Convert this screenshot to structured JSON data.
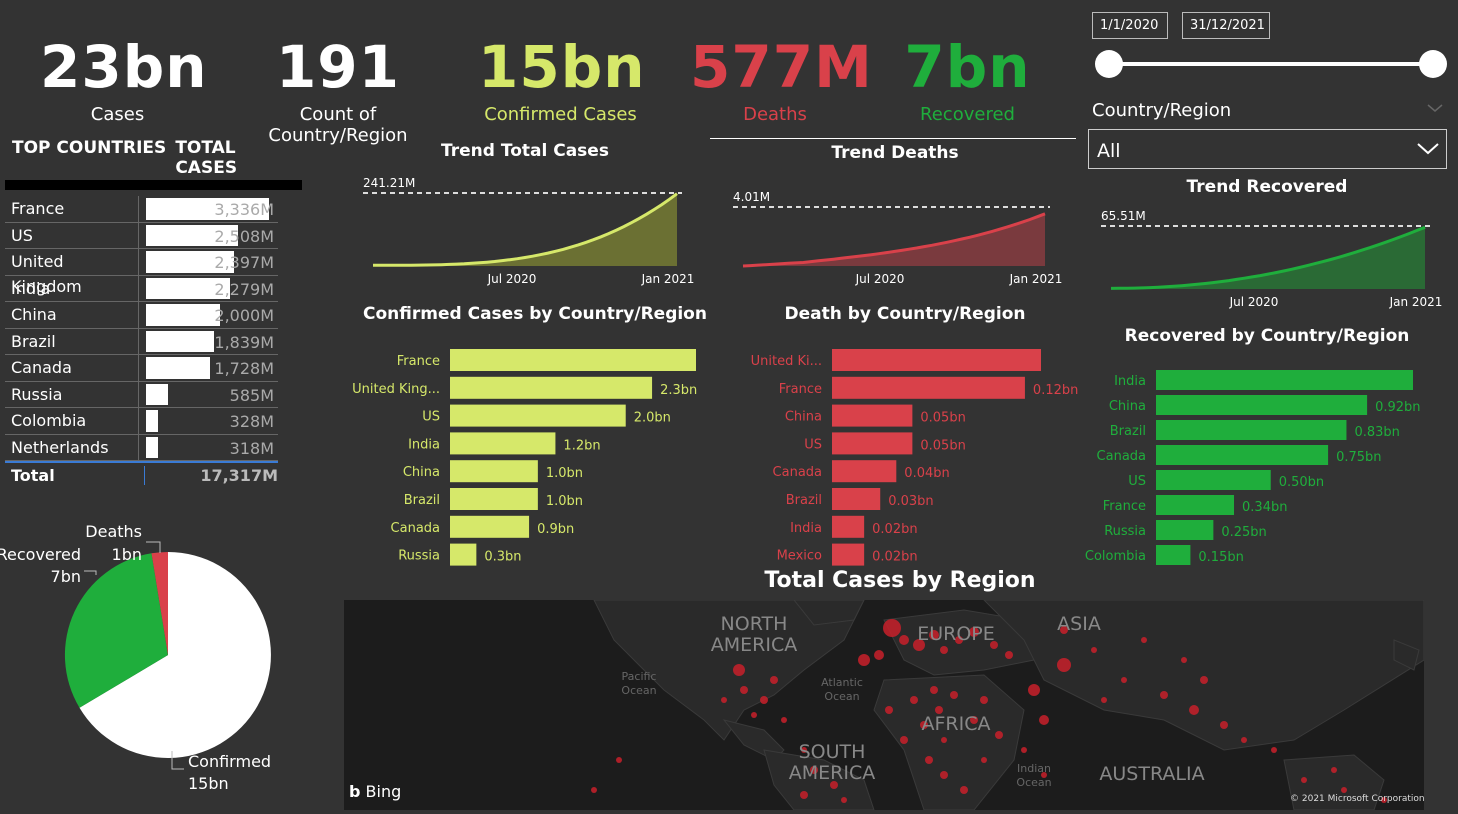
{
  "kpis": [
    {
      "value": "23bn",
      "label": "Cases",
      "color": "#ffffff"
    },
    {
      "value": "191",
      "label": "Count of Country/Region",
      "color": "#ffffff"
    },
    {
      "value": "15bn",
      "label": "Confirmed Cases",
      "color": "#d6e86a"
    },
    {
      "value": "577M",
      "label": "Deaths",
      "color": "#d9414a"
    },
    {
      "value": "7bn",
      "label": "Recovered",
      "color": "#1fae3c"
    }
  ],
  "date_range": {
    "start": "1/1/2020",
    "end": "31/12/2021",
    "fill_start": 0.0,
    "fill_end": 1.0
  },
  "slicer": {
    "label": "Country/Region",
    "value": "All"
  },
  "top_table": {
    "headers": [
      "TOP COUNTRIES",
      "TOTAL CASES"
    ],
    "rows": [
      {
        "country": "France",
        "value": "3,336M",
        "num": 3336
      },
      {
        "country": "US",
        "value": "2,508M",
        "num": 2508
      },
      {
        "country": "United Kingdom",
        "value": "2,397M",
        "num": 2397
      },
      {
        "country": "India",
        "value": "2,279M",
        "num": 2279
      },
      {
        "country": "China",
        "value": "2,000M",
        "num": 2000
      },
      {
        "country": "Brazil",
        "value": "1,839M",
        "num": 1839
      },
      {
        "country": "Canada",
        "value": "1,728M",
        "num": 1728
      },
      {
        "country": "Russia",
        "value": "585M",
        "num": 585
      },
      {
        "country": "Colombia",
        "value": "328M",
        "num": 328
      },
      {
        "country": "Netherlands",
        "value": "318M",
        "num": 318
      }
    ],
    "total_label": "Total",
    "total_value": "17,317M"
  },
  "trend_total": {
    "title": "Trend Total Cases",
    "max_label": "241.21M",
    "x_ticks": [
      "Jul 2020",
      "Jan 2021"
    ],
    "color": "#d6e86a",
    "fill": "#6b7033"
  },
  "trend_deaths": {
    "title": "Trend Deaths",
    "max_label": "4.01M",
    "x_ticks": [
      "Jul 2020",
      "Jan 2021"
    ],
    "color": "#d9414a",
    "fill": "#7a3a3e"
  },
  "trend_recovered": {
    "title": "Trend Recovered",
    "max_label": "65.51M",
    "x_ticks": [
      "Jul 2020",
      "Jan 2021"
    ],
    "color": "#1fae3c",
    "fill": "#2a6a35"
  },
  "chart_data": [
    {
      "type": "bar",
      "title": "Confirmed Cases by Country/Region",
      "categories": [
        "France",
        "United King...",
        "US",
        "India",
        "China",
        "Brazil",
        "Canada",
        "Russia"
      ],
      "values": [
        2.8,
        2.3,
        2.0,
        1.2,
        1.0,
        1.0,
        0.9,
        0.3
      ],
      "labels": [
        "",
        "2.3bn",
        "2.0bn",
        "1.2bn",
        "1.0bn",
        "1.0bn",
        "0.9bn",
        "0.3bn"
      ],
      "color": "#d6e86a",
      "label_color": "#d6e86a",
      "cat_color": "#d6e86a"
    },
    {
      "type": "bar",
      "title": "Death by Country/Region",
      "categories": [
        "United Ki...",
        "France",
        "China",
        "US",
        "Canada",
        "Brazil",
        "India",
        "Mexico"
      ],
      "values": [
        0.13,
        0.12,
        0.05,
        0.05,
        0.04,
        0.03,
        0.02,
        0.02
      ],
      "labels": [
        "",
        "0.12bn",
        "0.05bn",
        "0.05bn",
        "0.04bn",
        "0.03bn",
        "0.02bn",
        "0.02bn"
      ],
      "color": "#d9414a",
      "label_color": "#d9414a",
      "cat_color": "#d9414a"
    },
    {
      "type": "bar",
      "title": "Recovered by Country/Region",
      "categories": [
        "India",
        "China",
        "Brazil",
        "Canada",
        "US",
        "France",
        "Russia",
        "Colombia"
      ],
      "values": [
        1.12,
        0.92,
        0.83,
        0.75,
        0.5,
        0.34,
        0.25,
        0.15
      ],
      "labels": [
        "",
        "0.92bn",
        "0.83bn",
        "0.75bn",
        "0.50bn",
        "0.34bn",
        "0.25bn",
        "0.15bn"
      ],
      "color": "#1fae3c",
      "label_color": "#1fae3c",
      "cat_color": "#1fae3c"
    },
    {
      "type": "pie",
      "slices": [
        {
          "name": "Confirmed",
          "label": "15bn",
          "value": 15,
          "color": "#ffffff"
        },
        {
          "name": "Recovered",
          "label": "7bn",
          "value": 7,
          "color": "#1fae3c"
        },
        {
          "name": "Deaths",
          "label": "1bn",
          "value": 0.577,
          "color": "#d9414a"
        }
      ]
    }
  ],
  "map": {
    "title": "Total Cases by Region",
    "regions": [
      "NORTH AMERICA",
      "EUROPE",
      "ASIA",
      "AFRICA",
      "SOUTH AMERICA",
      "AUSTRALIA"
    ],
    "oceans": [
      "Pacific Ocean",
      "Atlantic Ocean",
      "Indian Ocean"
    ],
    "provider": "Bing",
    "copyright": "© 2021 Microsoft Corporation"
  }
}
